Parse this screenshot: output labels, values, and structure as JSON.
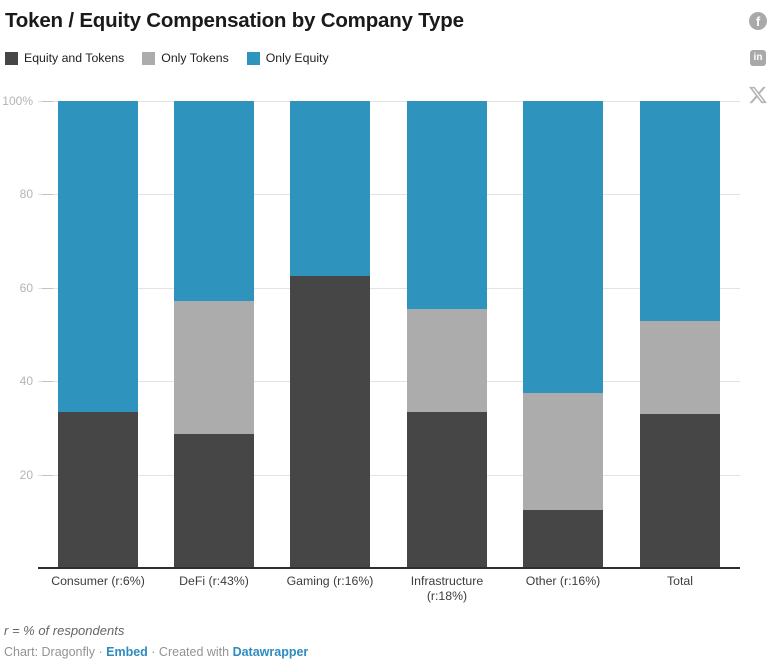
{
  "header": {
    "title": "Token / Equity Compensation by Company Type"
  },
  "share": {
    "facebook_glyph": "f",
    "linkedin_glyph": "in"
  },
  "chart_data": {
    "type": "bar",
    "stacked": true,
    "title": "Token / Equity Compensation by Company Type",
    "categories": [
      "Consumer (r:6%)",
      "DeFi (r:43%)",
      "Gaming (r:16%)",
      "Infrastructure (r:18%)",
      "Other (r:16%)",
      "Total"
    ],
    "series": [
      {
        "name": "Equity and Tokens",
        "color": "#464646",
        "values": [
          33.3,
          28.6,
          62.5,
          33.3,
          12.5,
          33.0
        ]
      },
      {
        "name": "Only Tokens",
        "color": "#acacac",
        "values": [
          0,
          28.6,
          0,
          22.2,
          25.0,
          19.8
        ]
      },
      {
        "name": "Only Equity",
        "color": "#2e93bd",
        "values": [
          66.7,
          42.8,
          37.5,
          44.5,
          62.5,
          47.2
        ]
      }
    ],
    "unit": "%",
    "ylim": [
      0,
      100
    ],
    "yticks": [
      {
        "value": 100,
        "label": "100%"
      },
      {
        "value": 80,
        "label": "80"
      },
      {
        "value": 60,
        "label": "60"
      },
      {
        "value": 40,
        "label": "40"
      },
      {
        "value": 20,
        "label": "20"
      }
    ],
    "grid": true,
    "legend_position": "top"
  },
  "footer": {
    "note": "r = % of respondents",
    "credit_prefix": "Chart: Dragonfly · ",
    "embed_label": "Embed",
    "credit_middle": " · Created with ",
    "creator_label": "Datawrapper"
  }
}
